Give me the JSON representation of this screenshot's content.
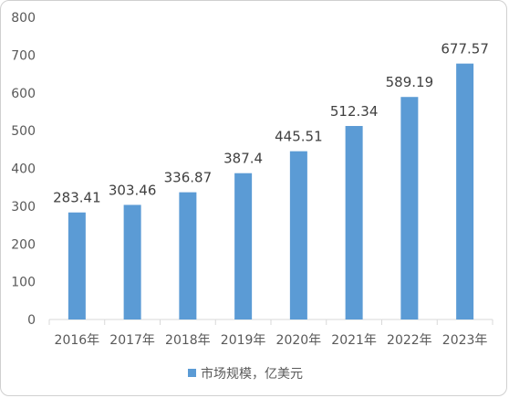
{
  "chart_data": {
    "type": "bar",
    "categories": [
      "2016年",
      "2017年",
      "2018年",
      "2019年",
      "2020年",
      "2021年",
      "2022年",
      "2023年"
    ],
    "series": [
      {
        "name": "市场规模，亿美元",
        "values": [
          283.41,
          303.46,
          336.87,
          387.4,
          445.51,
          512.34,
          589.19,
          677.57
        ],
        "labels": [
          "283.41",
          "303.46",
          "336.87",
          "387.4",
          "445.51",
          "512.34",
          "589.19",
          "677.57"
        ]
      }
    ],
    "ylim": [
      0,
      800
    ],
    "yticks": [
      0,
      100,
      200,
      300,
      400,
      500,
      600,
      700,
      800
    ],
    "grid": false,
    "legend_position": "bottom",
    "bar_color": "#5b9bd5",
    "axis_color": "#d9d9d9"
  }
}
